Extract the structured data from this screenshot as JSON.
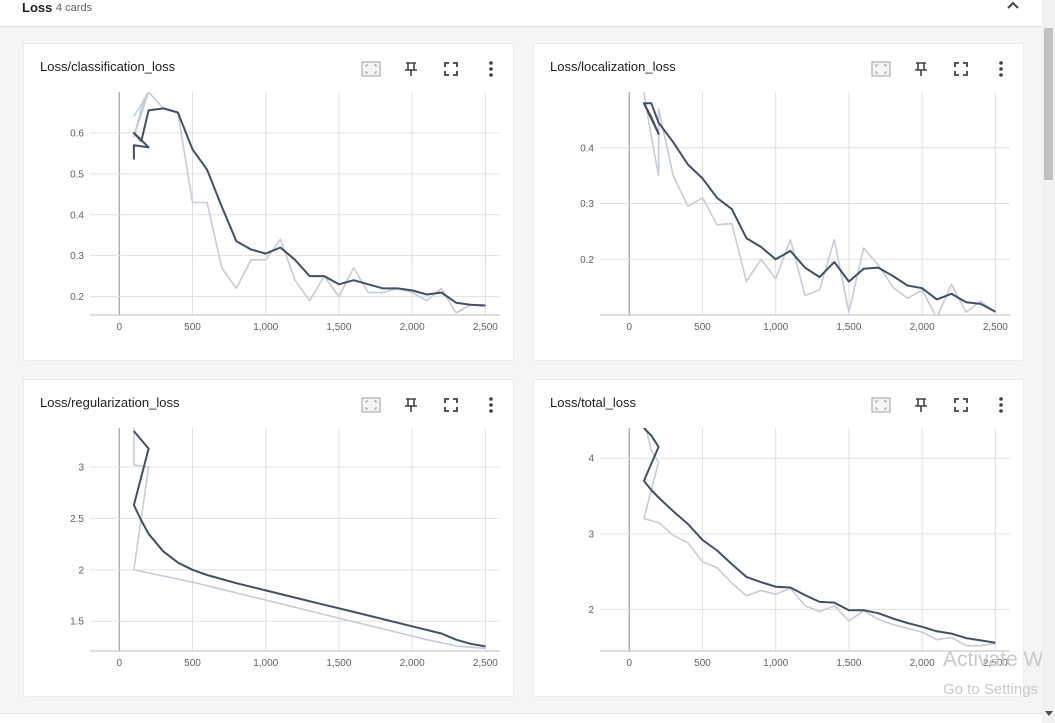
{
  "group": {
    "title": "Loss",
    "count": "4 cards"
  },
  "watermark": {
    "line1": "Activate Windows",
    "line2": "Go to Settings to activate Windows."
  },
  "colors": {
    "smoothed": "#425066",
    "raw": "#c6ccd8",
    "grid": "#e0e0e0"
  },
  "icons": [
    "chevron-up-icon",
    "fit-domain-icon",
    "pin-icon",
    "fullscreen-icon",
    "more-vert-icon"
  ],
  "cards": [
    {
      "title": "Loss/classification_loss"
    },
    {
      "title": "Loss/localization_loss"
    },
    {
      "title": "Loss/regularization_loss"
    },
    {
      "title": "Loss/total_loss"
    }
  ],
  "chart_data": [
    {
      "type": "line",
      "title": "Loss/classification_loss",
      "xlim": [
        -200,
        2600
      ],
      "ylim": [
        0.155,
        0.7
      ],
      "xticks": [
        "0",
        "500",
        "1,000",
        "1,500",
        "2,000",
        "2,500"
      ],
      "xtick_values": [
        0,
        500,
        1000,
        1500,
        2000,
        2500
      ],
      "yticks": [
        "0.2",
        "0.3",
        "0.4",
        "0.5",
        "0.6"
      ],
      "ytick_values": [
        0.2,
        0.3,
        0.4,
        0.5,
        0.6
      ],
      "grid": true,
      "series": [
        {
          "role": "raw",
          "x": [
            100,
            100,
            200,
            100,
            150,
            200,
            300,
            400,
            500,
            600,
            700,
            800,
            900,
            1000,
            1100,
            1200,
            1300,
            1400,
            1500,
            1600,
            1700,
            1800,
            1900,
            2000,
            2100,
            2200,
            2300,
            2400,
            2500
          ],
          "y": [
            0.64,
            0.64,
            0.7,
            0.59,
            0.66,
            0.7,
            0.66,
            0.65,
            0.43,
            0.43,
            0.27,
            0.22,
            0.29,
            0.29,
            0.34,
            0.24,
            0.19,
            0.25,
            0.2,
            0.27,
            0.21,
            0.21,
            0.22,
            0.21,
            0.19,
            0.22,
            0.16,
            0.18,
            0.18
          ]
        },
        {
          "role": "smoothed",
          "x": [
            100,
            100,
            200,
            100,
            150,
            200,
            300,
            400,
            500,
            600,
            700,
            800,
            900,
            1000,
            1100,
            1200,
            1300,
            1400,
            1500,
            1600,
            1700,
            1800,
            1900,
            2000,
            2100,
            2200,
            2300,
            2400,
            2500
          ],
          "y": [
            0.535,
            0.57,
            0.565,
            0.6,
            0.58,
            0.655,
            0.66,
            0.65,
            0.56,
            0.51,
            0.42,
            0.335,
            0.315,
            0.305,
            0.32,
            0.29,
            0.25,
            0.25,
            0.23,
            0.24,
            0.23,
            0.22,
            0.22,
            0.215,
            0.205,
            0.21,
            0.185,
            0.18,
            0.178
          ]
        }
      ]
    },
    {
      "type": "line",
      "title": "Loss/localization_loss",
      "xlim": [
        -200,
        2600
      ],
      "ylim": [
        0.1,
        0.5
      ],
      "xticks": [
        "0",
        "500",
        "1,000",
        "1,500",
        "2,000",
        "2,500"
      ],
      "xtick_values": [
        0,
        500,
        1000,
        1500,
        2000,
        2500
      ],
      "yticks": [
        "0.2",
        "0.3",
        "0.4"
      ],
      "ytick_values": [
        0.2,
        0.3,
        0.4
      ],
      "grid": true,
      "series": [
        {
          "role": "raw",
          "x": [
            100,
            150,
            200,
            200,
            300,
            400,
            500,
            600,
            700,
            800,
            900,
            1000,
            1100,
            1200,
            1300,
            1400,
            1500,
            1600,
            1700,
            1800,
            1900,
            2000,
            2100,
            2200,
            2300,
            2400,
            2500
          ],
          "y": [
            0.5,
            0.42,
            0.35,
            0.47,
            0.35,
            0.295,
            0.31,
            0.262,
            0.264,
            0.16,
            0.2,
            0.165,
            0.235,
            0.135,
            0.145,
            0.235,
            0.105,
            0.22,
            0.19,
            0.15,
            0.13,
            0.145,
            0.095,
            0.155,
            0.105,
            0.125,
            0.105
          ]
        },
        {
          "role": "smoothed",
          "x": [
            100,
            150,
            200,
            100,
            150,
            200,
            300,
            400,
            500,
            600,
            700,
            800,
            900,
            1000,
            1100,
            1200,
            1300,
            1400,
            1500,
            1600,
            1700,
            1800,
            1900,
            2000,
            2100,
            2200,
            2300,
            2400,
            2500
          ],
          "y": [
            0.48,
            0.455,
            0.425,
            0.48,
            0.48,
            0.445,
            0.41,
            0.37,
            0.345,
            0.31,
            0.29,
            0.238,
            0.222,
            0.2,
            0.215,
            0.185,
            0.168,
            0.195,
            0.16,
            0.183,
            0.185,
            0.17,
            0.153,
            0.148,
            0.128,
            0.138,
            0.123,
            0.12,
            0.106
          ]
        }
      ]
    },
    {
      "type": "line",
      "title": "Loss/regularization_loss",
      "xlim": [
        -200,
        2600
      ],
      "ylim": [
        1.21,
        3.38
      ],
      "xticks": [
        "0",
        "500",
        "1,000",
        "1,500",
        "2,000",
        "2,500"
      ],
      "xtick_values": [
        0,
        500,
        1000,
        1500,
        2000,
        2500
      ],
      "yticks": [
        "1.5",
        "2",
        "2.5",
        "3"
      ],
      "ytick_values": [
        1.5,
        2,
        2.5,
        3
      ],
      "grid": true,
      "series": [
        {
          "role": "raw",
          "x": [
            100,
            100,
            200,
            100,
            200,
            300,
            500,
            700,
            900,
            1100,
            1300,
            1500,
            1700,
            1900,
            2100,
            2300,
            2500
          ],
          "y": [
            3.45,
            3.02,
            3.0,
            2.0,
            1.97,
            1.94,
            1.88,
            1.81,
            1.74,
            1.67,
            1.6,
            1.53,
            1.46,
            1.39,
            1.32,
            1.26,
            1.235
          ]
        },
        {
          "role": "smoothed",
          "x": [
            100,
            200,
            100,
            150,
            200,
            300,
            400,
            500,
            600,
            700,
            800,
            1000,
            1200,
            1400,
            1600,
            1800,
            2000,
            2200,
            2300,
            2400,
            2500
          ],
          "y": [
            3.35,
            3.18,
            2.63,
            2.48,
            2.35,
            2.18,
            2.07,
            2.0,
            1.95,
            1.91,
            1.87,
            1.8,
            1.73,
            1.66,
            1.59,
            1.52,
            1.45,
            1.38,
            1.32,
            1.28,
            1.255
          ]
        }
      ]
    },
    {
      "type": "line",
      "title": "Loss/total_loss",
      "xlim": [
        -200,
        2600
      ],
      "ylim": [
        1.45,
        4.4
      ],
      "xticks": [
        "0",
        "500",
        "1,000",
        "1,500",
        "2,000",
        "2,500"
      ],
      "xtick_values": [
        0,
        500,
        1000,
        1500,
        2000,
        2500
      ],
      "yticks": [
        "2",
        "3",
        "4"
      ],
      "ytick_values": [
        2,
        3,
        4
      ],
      "grid": true,
      "series": [
        {
          "role": "raw",
          "x": [
            100,
            150,
            200,
            100,
            200,
            300,
            400,
            500,
            600,
            700,
            800,
            900,
            1000,
            1100,
            1200,
            1300,
            1400,
            1500,
            1600,
            1700,
            1800,
            1900,
            2000,
            2100,
            2200,
            2300,
            2400,
            2500
          ],
          "y": [
            4.5,
            4.1,
            3.95,
            3.2,
            3.15,
            2.98,
            2.88,
            2.63,
            2.55,
            2.35,
            2.18,
            2.25,
            2.2,
            2.28,
            2.05,
            1.97,
            2.05,
            1.85,
            1.98,
            1.87,
            1.8,
            1.75,
            1.7,
            1.6,
            1.63,
            1.52,
            1.52,
            1.55
          ]
        },
        {
          "role": "smoothed",
          "x": [
            100,
            150,
            200,
            100,
            150,
            200,
            300,
            400,
            500,
            600,
            700,
            800,
            900,
            1000,
            1100,
            1200,
            1300,
            1400,
            1500,
            1600,
            1700,
            1800,
            1900,
            2000,
            2100,
            2200,
            2300,
            2400,
            2500
          ],
          "y": [
            4.4,
            4.3,
            4.15,
            3.7,
            3.58,
            3.48,
            3.3,
            3.13,
            2.92,
            2.78,
            2.6,
            2.43,
            2.36,
            2.3,
            2.29,
            2.19,
            2.1,
            2.09,
            1.99,
            1.99,
            1.95,
            1.88,
            1.82,
            1.77,
            1.71,
            1.68,
            1.62,
            1.59,
            1.56
          ]
        }
      ]
    }
  ]
}
